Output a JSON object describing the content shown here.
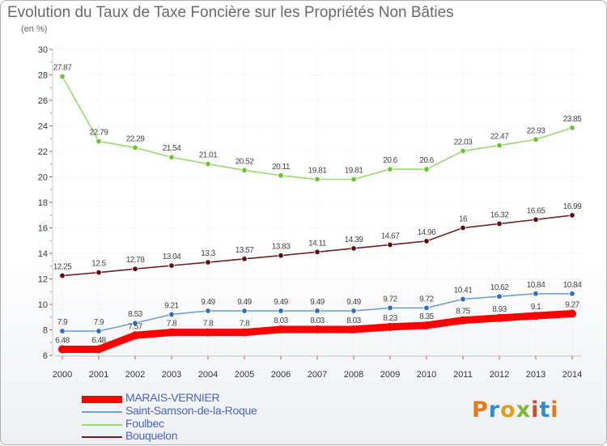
{
  "title": "Evolution du Taux de Taxe Foncière sur les Propriétés Non Bâties",
  "subtitle": "(en %)",
  "logo": {
    "text": "Proxiti",
    "colors": [
      "#e07a1a",
      "#2c8fd6",
      "#e0a01a",
      "#7bb83a",
      "#d84a2c",
      "#2c8fd6",
      "#e07a1a"
    ]
  },
  "legend": [
    {
      "label": "MARAIS-VERNIER",
      "color": "#ff0000"
    },
    {
      "label": "Saint-Samson-de-la-Roque",
      "color": "#6fa1d2"
    },
    {
      "label": "Foulbec",
      "color": "#9ad870"
    },
    {
      "label": "Bouquelon",
      "color": "#6b1f1f"
    }
  ],
  "chart_data": {
    "type": "line",
    "title": "Evolution du Taux de Taxe Foncière sur les Propriétés Non Bâties",
    "ylabel": "(en %)",
    "ylim": [
      6,
      30
    ],
    "yticks": [
      6,
      8,
      10,
      12,
      14,
      16,
      18,
      20,
      22,
      24,
      26,
      28,
      30
    ],
    "x": [
      2000,
      2001,
      2002,
      2003,
      2004,
      2005,
      2006,
      2007,
      2008,
      2009,
      2010,
      2011,
      2012,
      2013,
      2014
    ],
    "grid": true,
    "legend_position": "bottom-left",
    "series": [
      {
        "name": "MARAIS-VERNIER",
        "color": "#ff0000",
        "marker": "#ff0000",
        "values": [
          6.48,
          6.48,
          7.57,
          7.8,
          7.8,
          7.8,
          8.03,
          8.03,
          8.03,
          8.23,
          8.35,
          8.75,
          8.93,
          9.1,
          9.27
        ],
        "labels": [
          "6.48",
          "6.48",
          "7.57",
          "7.8",
          "7.8",
          "7.8",
          "8.03",
          "8.03",
          "8.03",
          "8.23",
          "8.35",
          "8.75",
          "8.93",
          "9.1",
          "9.27"
        ]
      },
      {
        "name": "Saint-Samson-de-la-Roque",
        "color": "#6fa1d2",
        "marker": "#2e6fbf",
        "values": [
          7.9,
          7.9,
          8.53,
          9.21,
          9.49,
          9.49,
          9.49,
          9.49,
          9.49,
          9.72,
          9.72,
          10.41,
          10.62,
          10.84,
          10.84
        ],
        "labels": [
          "7.9",
          "7.9",
          "8.53",
          "9.21",
          "9.49",
          "9.49",
          "9.49",
          "9.49",
          "9.49",
          "9.72",
          "9.72",
          "10.41",
          "10.62",
          "10.84",
          "10.84"
        ]
      },
      {
        "name": "Foulbec",
        "color": "#9ad870",
        "marker": "#6cc431",
        "values": [
          27.87,
          22.79,
          22.29,
          21.54,
          21.01,
          20.52,
          20.11,
          19.81,
          19.81,
          20.6,
          20.6,
          22.03,
          22.47,
          22.93,
          23.85
        ],
        "labels": [
          "27.87",
          "22.79",
          "22.29",
          "21.54",
          "21.01",
          "20.52",
          "20.11",
          "19.81",
          "19.81",
          "20.6",
          "20.6",
          "22.03",
          "22.47",
          "22.93",
          "23.85"
        ]
      },
      {
        "name": "Bouquelon",
        "color": "#6b1f1f",
        "marker": "#5a1010",
        "values": [
          12.25,
          12.5,
          12.78,
          13.04,
          13.3,
          13.57,
          13.83,
          14.11,
          14.39,
          14.67,
          14.96,
          16,
          16.32,
          16.65,
          16.99
        ],
        "labels": [
          "12.25",
          "12.5",
          "12.78",
          "13.04",
          "13.3",
          "13.57",
          "13.83",
          "14.11",
          "14.39",
          "14.67",
          "14.96",
          "16",
          "16.32",
          "16.65",
          "16.99"
        ]
      }
    ]
  }
}
